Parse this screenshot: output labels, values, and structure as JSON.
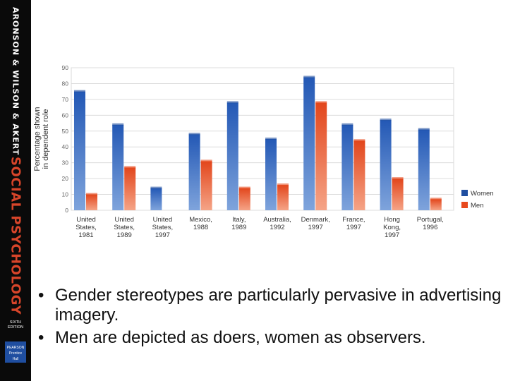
{
  "sidebar": {
    "authors": "ARONSON & WILSON & AKERT",
    "book_title": "SOCIAL PSYCHOLOGY",
    "edition_line1": "SIXTH",
    "edition_line2": "EDITION",
    "publisher_line1": "PEARSON",
    "publisher_line2": "Prentice",
    "publisher_line3": "Hall"
  },
  "chart_data": {
    "type": "bar",
    "title": "",
    "xlabel": "",
    "ylabel": "Percentage shown in dependent role",
    "ylabel_lines": [
      "Percentage shown",
      "in dependent role"
    ],
    "ylim": [
      0,
      90
    ],
    "yticks": [
      0,
      10,
      20,
      30,
      40,
      50,
      60,
      70,
      80,
      90
    ],
    "grid": true,
    "legend_position": "right",
    "categories": [
      [
        "United",
        "States,",
        "1981"
      ],
      [
        "United",
        "States,",
        "1989"
      ],
      [
        "United",
        "States,",
        "1997"
      ],
      [
        "Mexico,",
        "1988"
      ],
      [
        "Italy,",
        "1989"
      ],
      [
        "Australia,",
        "1992"
      ],
      [
        "Denmark,",
        "1997"
      ],
      [
        "France,",
        "1997"
      ],
      [
        "Hong",
        "Kong,",
        "1997"
      ],
      [
        "Portugal,",
        "1996"
      ]
    ],
    "series": [
      {
        "name": "Women",
        "color": "#1f4ea0",
        "values": [
          75,
          54,
          14,
          48,
          68,
          45,
          84,
          54,
          57,
          51
        ]
      },
      {
        "name": "Men",
        "color": "#e8491d",
        "values": [
          10,
          27,
          0,
          31,
          14,
          16,
          68,
          44,
          20,
          7
        ]
      }
    ]
  },
  "bullets": [
    "Gender stereotypes are particularly pervasive in advertising imagery.",
    "Men are depicted as doers, women as observers."
  ],
  "bullet_char": "•"
}
